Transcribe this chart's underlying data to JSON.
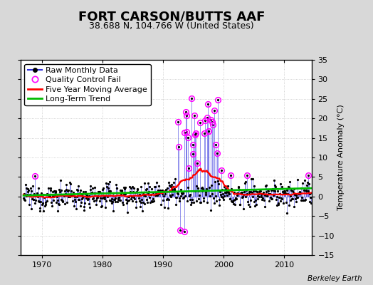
{
  "title": "FORT CARSON/BUTTS AAF",
  "subtitle": "38.688 N, 104.766 W (United States)",
  "ylabel": "Temperature Anomaly (°C)",
  "credit": "Berkeley Earth",
  "xlim": [
    1966.5,
    2014.5
  ],
  "ylim": [
    -15,
    35
  ],
  "yticks": [
    -15,
    -10,
    -5,
    0,
    5,
    10,
    15,
    20,
    25,
    30,
    35
  ],
  "xticks": [
    1970,
    1980,
    1990,
    2000,
    2010
  ],
  "raw_color": "#3333dd",
  "raw_dot_color": "#000000",
  "qc_color": "#ff00ff",
  "ma_color": "#ff0000",
  "trend_color": "#00bb00",
  "background_color": "#d8d8d8",
  "plot_bg_color": "#ffffff",
  "grid_color": "#aaaaaa",
  "title_fontsize": 13,
  "subtitle_fontsize": 9,
  "legend_fontsize": 8,
  "axis_fontsize": 8
}
